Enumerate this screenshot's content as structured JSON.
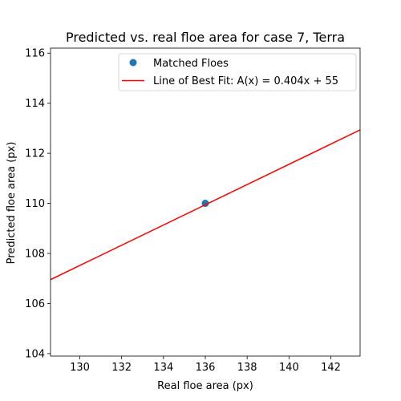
{
  "chart_data": {
    "type": "scatter",
    "title": "Predicted vs. real floe area  for case 7, Terra",
    "xlabel": "Real floe area (px)",
    "ylabel": "Predicted floe area (px)",
    "xlim": [
      128.6,
      143.4
    ],
    "ylim": [
      103.9,
      116.2
    ],
    "xticks": [
      130,
      132,
      134,
      136,
      138,
      140,
      142
    ],
    "yticks": [
      104,
      106,
      108,
      110,
      112,
      114,
      116
    ],
    "grid": false,
    "legend_position": "upper-right",
    "series": [
      {
        "name": "Matched Floes",
        "kind": "scatter",
        "color": "#1f77b4",
        "points": [
          [
            136,
            110
          ]
        ]
      },
      {
        "name": "Line of Best Fit: A(x) = 0.404x + 55",
        "kind": "line",
        "color": "#ff0000",
        "slope": 0.404,
        "intercept": 55
      }
    ]
  }
}
